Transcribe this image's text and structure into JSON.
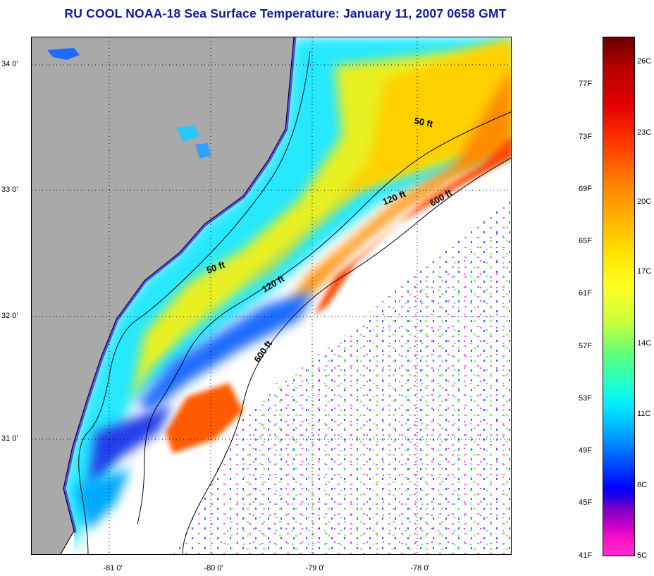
{
  "title": "RU COOL  NOAA-18  Sea Surface Temperature:  January 11, 2007 0658 GMT",
  "map": {
    "lat_labels": [
      "34 0'",
      "33 0'",
      "32 0'",
      "31 0'"
    ],
    "lon_labels": [
      "-81 0'",
      "-80 0'",
      "-79 0'",
      "-78 0'"
    ],
    "contours": [
      {
        "label": "50 ft"
      },
      {
        "label": "120 ft"
      },
      {
        "label": "600 ft"
      },
      {
        "label": "50 ft"
      },
      {
        "label": "120 ft"
      },
      {
        "label": "600 ft"
      }
    ],
    "colors": {
      "land": "#a9a9a9",
      "cloud": "#ffffff",
      "coast": "#000000"
    }
  },
  "colorbar": {
    "fahrenheit": [
      "77F",
      "73F",
      "69F",
      "65F",
      "61F",
      "57F",
      "53F",
      "49F",
      "45F",
      "41F"
    ],
    "celsius": [
      "26C",
      "23C",
      "20C",
      "17C",
      "14C",
      "11C",
      "8C",
      "5C"
    ]
  }
}
